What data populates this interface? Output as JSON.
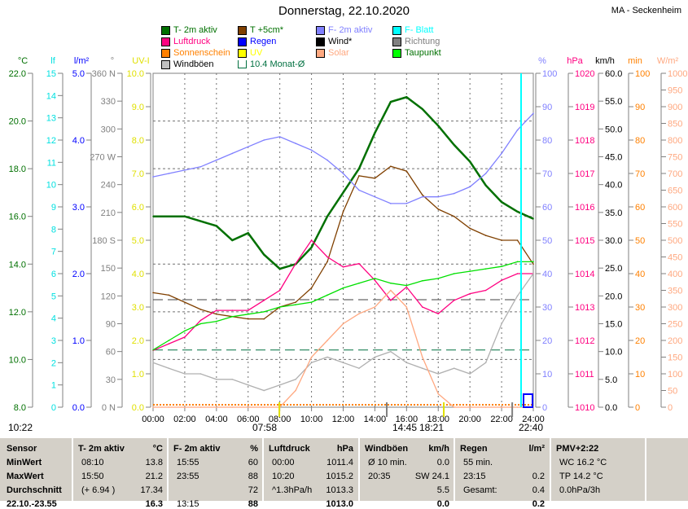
{
  "header": {
    "title": "Donnerstag, 22.10.2020",
    "station": "MA - Seckenheim"
  },
  "legend": [
    {
      "label": "T- 2m aktiv",
      "color": "#007000",
      "text": "#007000"
    },
    {
      "label": "T +5cm*",
      "color": "#804000",
      "text": "#007000"
    },
    {
      "label": "F- 2m aktiv",
      "color": "#8080ff",
      "text": "#8080ff"
    },
    {
      "label": "F- Blatt",
      "color": "#00ffff",
      "text": "#00ffff"
    },
    {
      "label": "Luftdruck",
      "color": "#ff0080",
      "text": "#ff0080"
    },
    {
      "label": "Regen",
      "color": "#0000ff",
      "text": "#0000ff"
    },
    {
      "label": "Wind*",
      "color": "#000000",
      "text": "#000000"
    },
    {
      "label": "Richtung",
      "color": "#808080",
      "text": "#808080"
    },
    {
      "label": "Sonnenschein",
      "color": "#ff8000",
      "text": "#ff8000"
    },
    {
      "label": "UV",
      "color": "#ffff00",
      "text": "#ffff00"
    },
    {
      "label": "Solar",
      "color": "#ffa880",
      "text": "#ffa880"
    },
    {
      "label": "Taupunkt",
      "color": "#00ff00",
      "text": "#007000"
    },
    {
      "label": "Windböen",
      "color": "#c0c0c0",
      "text": "#000000"
    },
    {
      "label": "10.4 Monat-Ø",
      "color": "#ffffff",
      "text": "#007040"
    }
  ],
  "axes_left": [
    {
      "unit": "°C",
      "color": "#007000",
      "ticks": [
        "22.0",
        "20.0",
        "18.0",
        "16.0",
        "14.0",
        "12.0",
        "10.0",
        "8.0"
      ]
    },
    {
      "unit": "lf",
      "color": "#00e0e0",
      "ticks": [
        "15",
        "14",
        "13",
        "12",
        "11",
        "10",
        "9",
        "8",
        "7",
        "6",
        "5",
        "4",
        "3",
        "2",
        "1",
        "0"
      ]
    },
    {
      "unit": "l/m²",
      "color": "#0000ff",
      "ticks": [
        "5.0",
        "4.0",
        "3.0",
        "2.0",
        "1.0",
        "0.0"
      ]
    },
    {
      "unit": "°",
      "color": "#808080",
      "ticks": [
        "360 N",
        "330",
        "300",
        "270 W",
        "240",
        "210",
        "180 S",
        "150",
        "120",
        "90",
        "60",
        "30",
        "0 N"
      ]
    },
    {
      "unit": "UV-I",
      "color": "#e0e000",
      "ticks": [
        "10.0",
        "9.0",
        "8.0",
        "7.0",
        "6.0",
        "5.0",
        "4.0",
        "3.0",
        "2.0",
        "1.0",
        "0.0"
      ]
    }
  ],
  "axes_right": [
    {
      "unit": "%",
      "color": "#8080ff",
      "ticks": [
        "100",
        "90",
        "80",
        "70",
        "60",
        "50",
        "40",
        "30",
        "20",
        "10",
        "0"
      ]
    },
    {
      "unit": "hPa",
      "color": "#ff0080",
      "ticks": [
        "1020",
        "1019",
        "1018",
        "1017",
        "1016",
        "1015",
        "1014",
        "1013",
        "1012",
        "1011",
        "1010"
      ]
    },
    {
      "unit": "km/h",
      "color": "#000000",
      "ticks": [
        "60.0",
        "55.0",
        "50.0",
        "45.0",
        "40.0",
        "35.0",
        "30.0",
        "25.0",
        "20.0",
        "15.0",
        "10.0",
        "5.0",
        "0.0"
      ]
    },
    {
      "unit": "min",
      "color": "#ff8000",
      "ticks": [
        "100",
        "90",
        "80",
        "70",
        "60",
        "50",
        "40",
        "30",
        "20",
        "10",
        "0"
      ]
    },
    {
      "unit": "W/m²",
      "color": "#ffa880",
      "ticks": [
        "1000",
        "950",
        "900",
        "850",
        "800",
        "750",
        "700",
        "650",
        "600",
        "550",
        "500",
        "450",
        "400",
        "350",
        "300",
        "250",
        "200",
        "150",
        "100",
        "50",
        "0"
      ]
    }
  ],
  "chart_data": {
    "type": "line",
    "title": "Donnerstag, 22.10.2020",
    "x_ticks": [
      "00:00",
      "02:00",
      "04:00",
      "06:00",
      "08:00",
      "10:00",
      "12:00",
      "14:00",
      "16:00",
      "18:00",
      "20:00",
      "22:00",
      "24:00"
    ],
    "x_hours": [
      0,
      1,
      2,
      3,
      4,
      5,
      6,
      7,
      8,
      9,
      10,
      11,
      12,
      13,
      14,
      15,
      16,
      17,
      18,
      19,
      20,
      21,
      22,
      23,
      24
    ],
    "series": [
      {
        "name": "T- 2m aktiv",
        "unit": "°C",
        "ylim": [
          8,
          22
        ],
        "color": "#007000",
        "values": [
          16.0,
          16.0,
          16.0,
          15.8,
          15.6,
          15.0,
          15.3,
          14.4,
          13.8,
          14.0,
          14.7,
          16.0,
          17.0,
          18.0,
          19.5,
          20.8,
          21.0,
          20.5,
          19.8,
          19.0,
          18.3,
          17.3,
          16.6,
          16.2,
          15.9
        ]
      },
      {
        "name": "T +5cm*",
        "unit": "°C",
        "ylim": [
          8,
          22
        ],
        "color": "#804000",
        "values": [
          12.8,
          12.7,
          12.4,
          12.1,
          11.9,
          11.8,
          11.7,
          11.7,
          12.2,
          12.4,
          13.0,
          14.1,
          16.2,
          17.7,
          17.6,
          18.1,
          17.9,
          16.9,
          16.3,
          16.0,
          15.5,
          15.2,
          15.0,
          15.0,
          14.0
        ]
      },
      {
        "name": "F- 2m aktiv",
        "unit": "%",
        "ylim": [
          0,
          100
        ],
        "color": "#8080ff",
        "values": [
          69,
          70,
          71,
          72,
          74,
          76,
          78,
          80,
          81,
          79,
          77,
          74,
          70,
          65,
          63,
          61,
          61,
          63,
          63,
          64,
          66,
          70,
          76,
          83,
          88
        ]
      },
      {
        "name": "Luftdruck",
        "unit": "hPa",
        "ylim": [
          1010,
          1020
        ],
        "color": "#ff0080",
        "values": [
          1011.7,
          1011.9,
          1012.1,
          1012.6,
          1012.9,
          1012.9,
          1012.9,
          1013.2,
          1013.5,
          1014.3,
          1015.0,
          1014.5,
          1014.2,
          1014.3,
          1013.8,
          1013.2,
          1013.6,
          1013.0,
          1012.8,
          1013.2,
          1013.4,
          1013.5,
          1013.8,
          1014.0,
          1014.0
        ]
      },
      {
        "name": "Taupunkt",
        "unit": "°C",
        "ylim": [
          8,
          22
        ],
        "color": "#00e000",
        "values": [
          10.4,
          10.8,
          11.2,
          11.5,
          11.6,
          11.8,
          11.9,
          12.0,
          12.2,
          12.3,
          12.4,
          12.7,
          13.0,
          13.2,
          13.4,
          13.2,
          13.1,
          13.3,
          13.4,
          13.6,
          13.7,
          13.8,
          13.9,
          14.1,
          14.1
        ]
      },
      {
        "name": "Windböen",
        "unit": "km/h",
        "ylim": [
          0,
          60
        ],
        "color": "#b0b0b0",
        "values": [
          8,
          7,
          6,
          6,
          5,
          5,
          4,
          3,
          4,
          5,
          8,
          9,
          8,
          7,
          9,
          10,
          8,
          7,
          6,
          7,
          6,
          8,
          15,
          20,
          24
        ]
      },
      {
        "name": "Solar",
        "unit": "W/m²",
        "ylim": [
          0,
          1000
        ],
        "color": "#ffa880",
        "values": [
          0,
          0,
          0,
          0,
          0,
          0,
          0,
          0,
          0,
          50,
          150,
          200,
          250,
          280,
          300,
          350,
          300,
          150,
          40,
          0,
          0,
          0,
          0,
          0,
          0
        ]
      }
    ],
    "monthly_avg": {
      "label": "10.4 Monat-Ø",
      "value": 10.4,
      "unit": "°C"
    }
  },
  "markers": {
    "left_time": "10:22",
    "sunrise": "07:58",
    "t1445": "14:45",
    "sunset": "18:21",
    "t2240": "22:40"
  },
  "table": {
    "columns": [
      {
        "title": "T- 2m aktiv",
        "unit": "°C",
        "rows": [
          [
            "08:10",
            "13.8"
          ],
          [
            "15:50",
            "21.2"
          ],
          [
            "(+ 6.94 )",
            "17.34"
          ],
          [
            "",
            "16.3"
          ]
        ]
      },
      {
        "title": "F- 2m aktiv",
        "unit": "%",
        "rows": [
          [
            "15:55",
            "60"
          ],
          [
            "23:55",
            "88"
          ],
          [
            "",
            "72"
          ],
          [
            "13:15",
            "88"
          ]
        ]
      },
      {
        "title": "Luftdruck",
        "unit": "hPa",
        "rows": [
          [
            "00:00",
            "1011.4"
          ],
          [
            "10:20",
            "1015.2"
          ],
          [
            "^1.3hPa/h",
            "1013.3"
          ],
          [
            "",
            "1013.0"
          ]
        ]
      },
      {
        "title": "Windböen",
        "unit": "km/h",
        "rows": [
          [
            "Ø 10 min.",
            "0.0"
          ],
          [
            "20:35",
            "SW 24.1"
          ],
          [
            "",
            "5.5"
          ],
          [
            "",
            "0.0"
          ]
        ]
      },
      {
        "title": "Regen",
        "unit": "l/m²",
        "rows": [
          [
            "55 min.",
            ""
          ],
          [
            "23:15",
            "0.2"
          ],
          [
            "Gesamt:",
            "0.4"
          ],
          [
            "",
            "0.2"
          ]
        ]
      },
      {
        "title": "PMV+2:22",
        "unit": "",
        "rows": [
          [
            "WC 16.2 °C",
            ""
          ],
          [
            "TP 14.2 °C",
            ""
          ],
          [
            "0.0hPa/3h",
            ""
          ],
          [
            "",
            ""
          ]
        ]
      }
    ],
    "row_labels": [
      "Sensor",
      "MinWert",
      "MaxWert",
      "Durchschnitt",
      "22.10.-23.55"
    ]
  }
}
